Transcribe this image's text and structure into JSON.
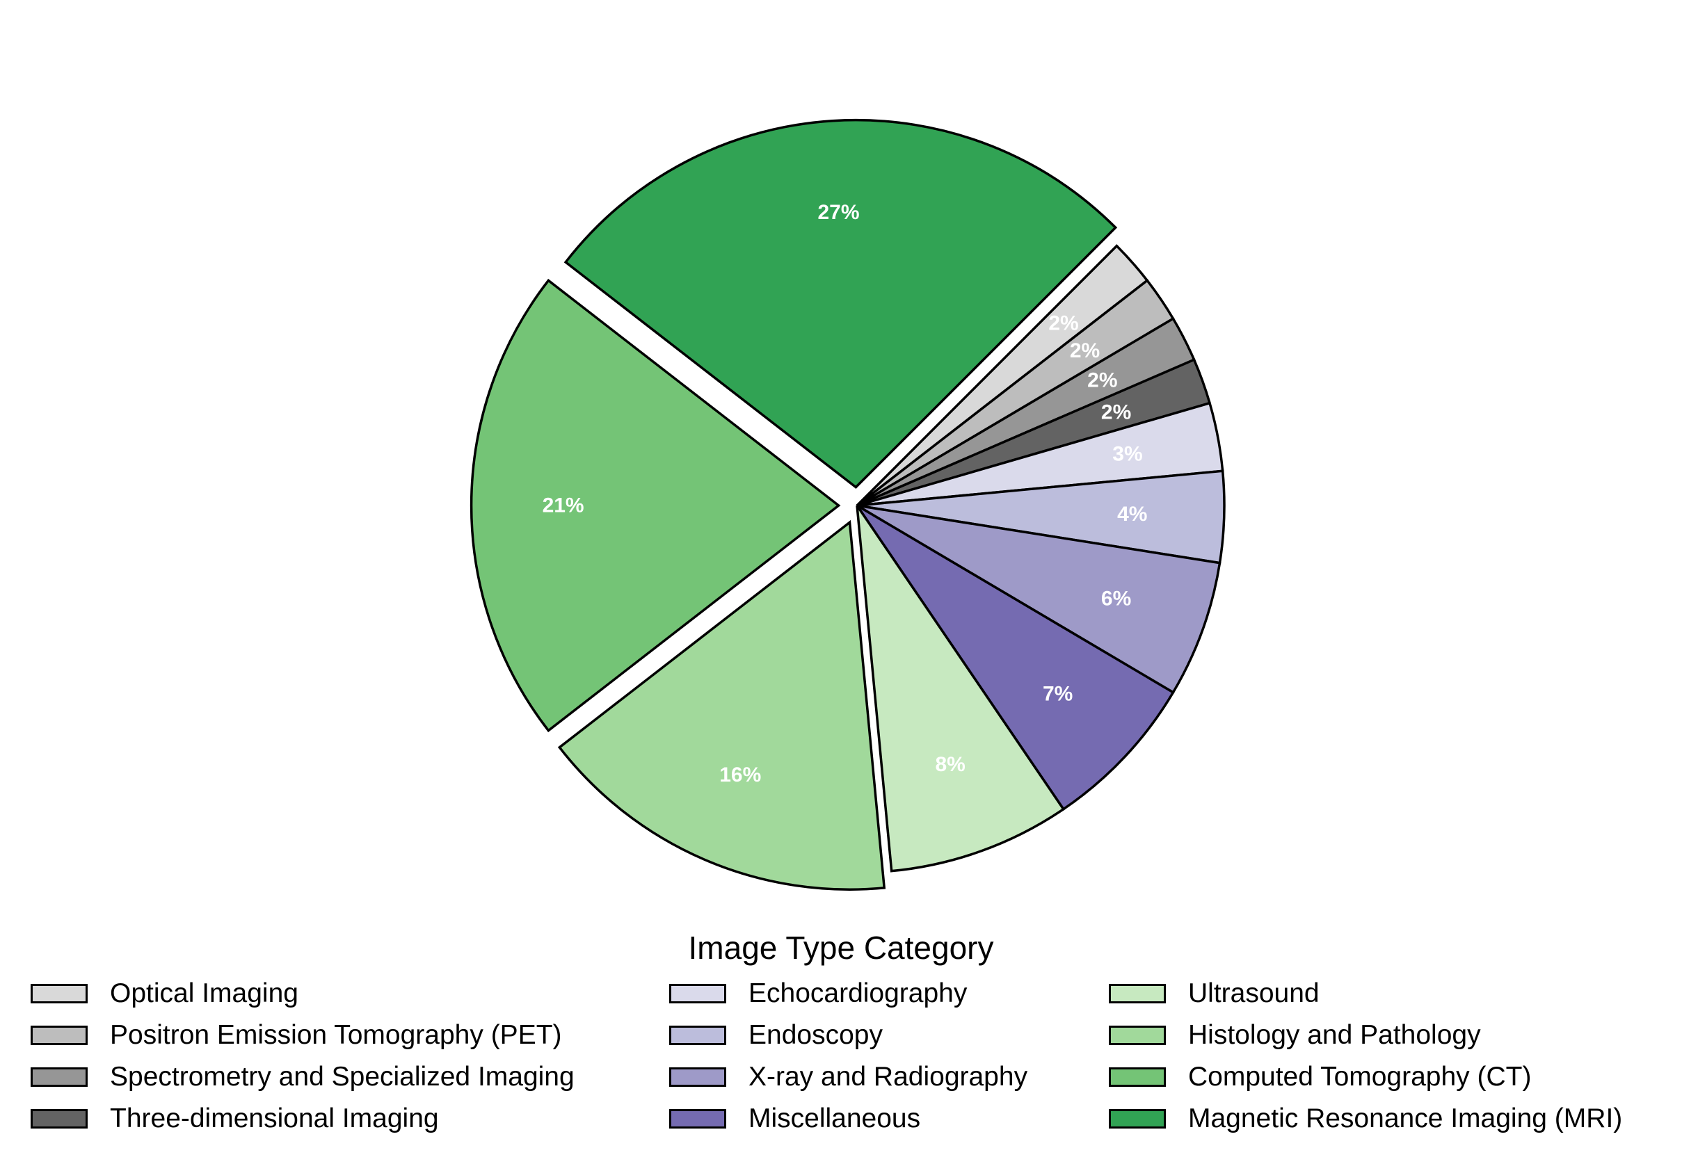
{
  "chart_data": {
    "type": "pie",
    "title": "",
    "start_angle_deg": 45,
    "direction": "clockwise",
    "slices": [
      {
        "label": "Optical Imaging",
        "value": 2,
        "pct_label": "2%",
        "color": "#d9d9d9",
        "explode": 0.0
      },
      {
        "label": "Positron Emission Tomography (PET)",
        "value": 2,
        "pct_label": "2%",
        "color": "#bdbdbd",
        "explode": 0.0
      },
      {
        "label": "Spectrometry and Specialized Imaging",
        "value": 2,
        "pct_label": "2%",
        "color": "#969696",
        "explode": 0.0
      },
      {
        "label": "Three-dimensional Imaging",
        "value": 2,
        "pct_label": "2%",
        "color": "#636363",
        "explode": 0.0
      },
      {
        "label": "Echocardiography",
        "value": 3,
        "pct_label": "3%",
        "color": "#dadaeb",
        "explode": 0.0
      },
      {
        "label": "Endoscopy",
        "value": 4,
        "pct_label": "4%",
        "color": "#bcbddc",
        "explode": 0.0
      },
      {
        "label": "X-ray and Radiography",
        "value": 6,
        "pct_label": "6%",
        "color": "#9e9ac8",
        "explode": 0.0
      },
      {
        "label": "Miscellaneous",
        "value": 7,
        "pct_label": "7%",
        "color": "#756bb1",
        "explode": 0.0
      },
      {
        "label": "Ultrasound",
        "value": 8,
        "pct_label": "8%",
        "color": "#c7e9c0",
        "explode": 0.0
      },
      {
        "label": "Histology and Pathology",
        "value": 16,
        "pct_label": "16%",
        "color": "#a1d99b",
        "explode": 0.05
      },
      {
        "label": "Computed Tomography (CT)",
        "value": 21,
        "pct_label": "21%",
        "color": "#74c476",
        "explode": 0.05
      },
      {
        "label": "Magnetic Resonance Imaging (MRI)",
        "value": 27,
        "pct_label": "27%",
        "color": "#31a354",
        "explode": 0.05
      }
    ],
    "legend": {
      "title": "Image Type Category",
      "placement": "bottom",
      "columns": [
        [
          "Optical Imaging",
          "Positron Emission Tomography (PET)",
          "Spectrometry and Specialized Imaging",
          "Three-dimensional Imaging"
        ],
        [
          "Echocardiography",
          "Endoscopy",
          "X-ray and Radiography",
          "Miscellaneous"
        ],
        [
          "Ultrasound",
          "Histology and Pathology",
          "Computed Tomography (CT)",
          "Magnetic Resonance Imaging (MRI)"
        ]
      ]
    }
  }
}
